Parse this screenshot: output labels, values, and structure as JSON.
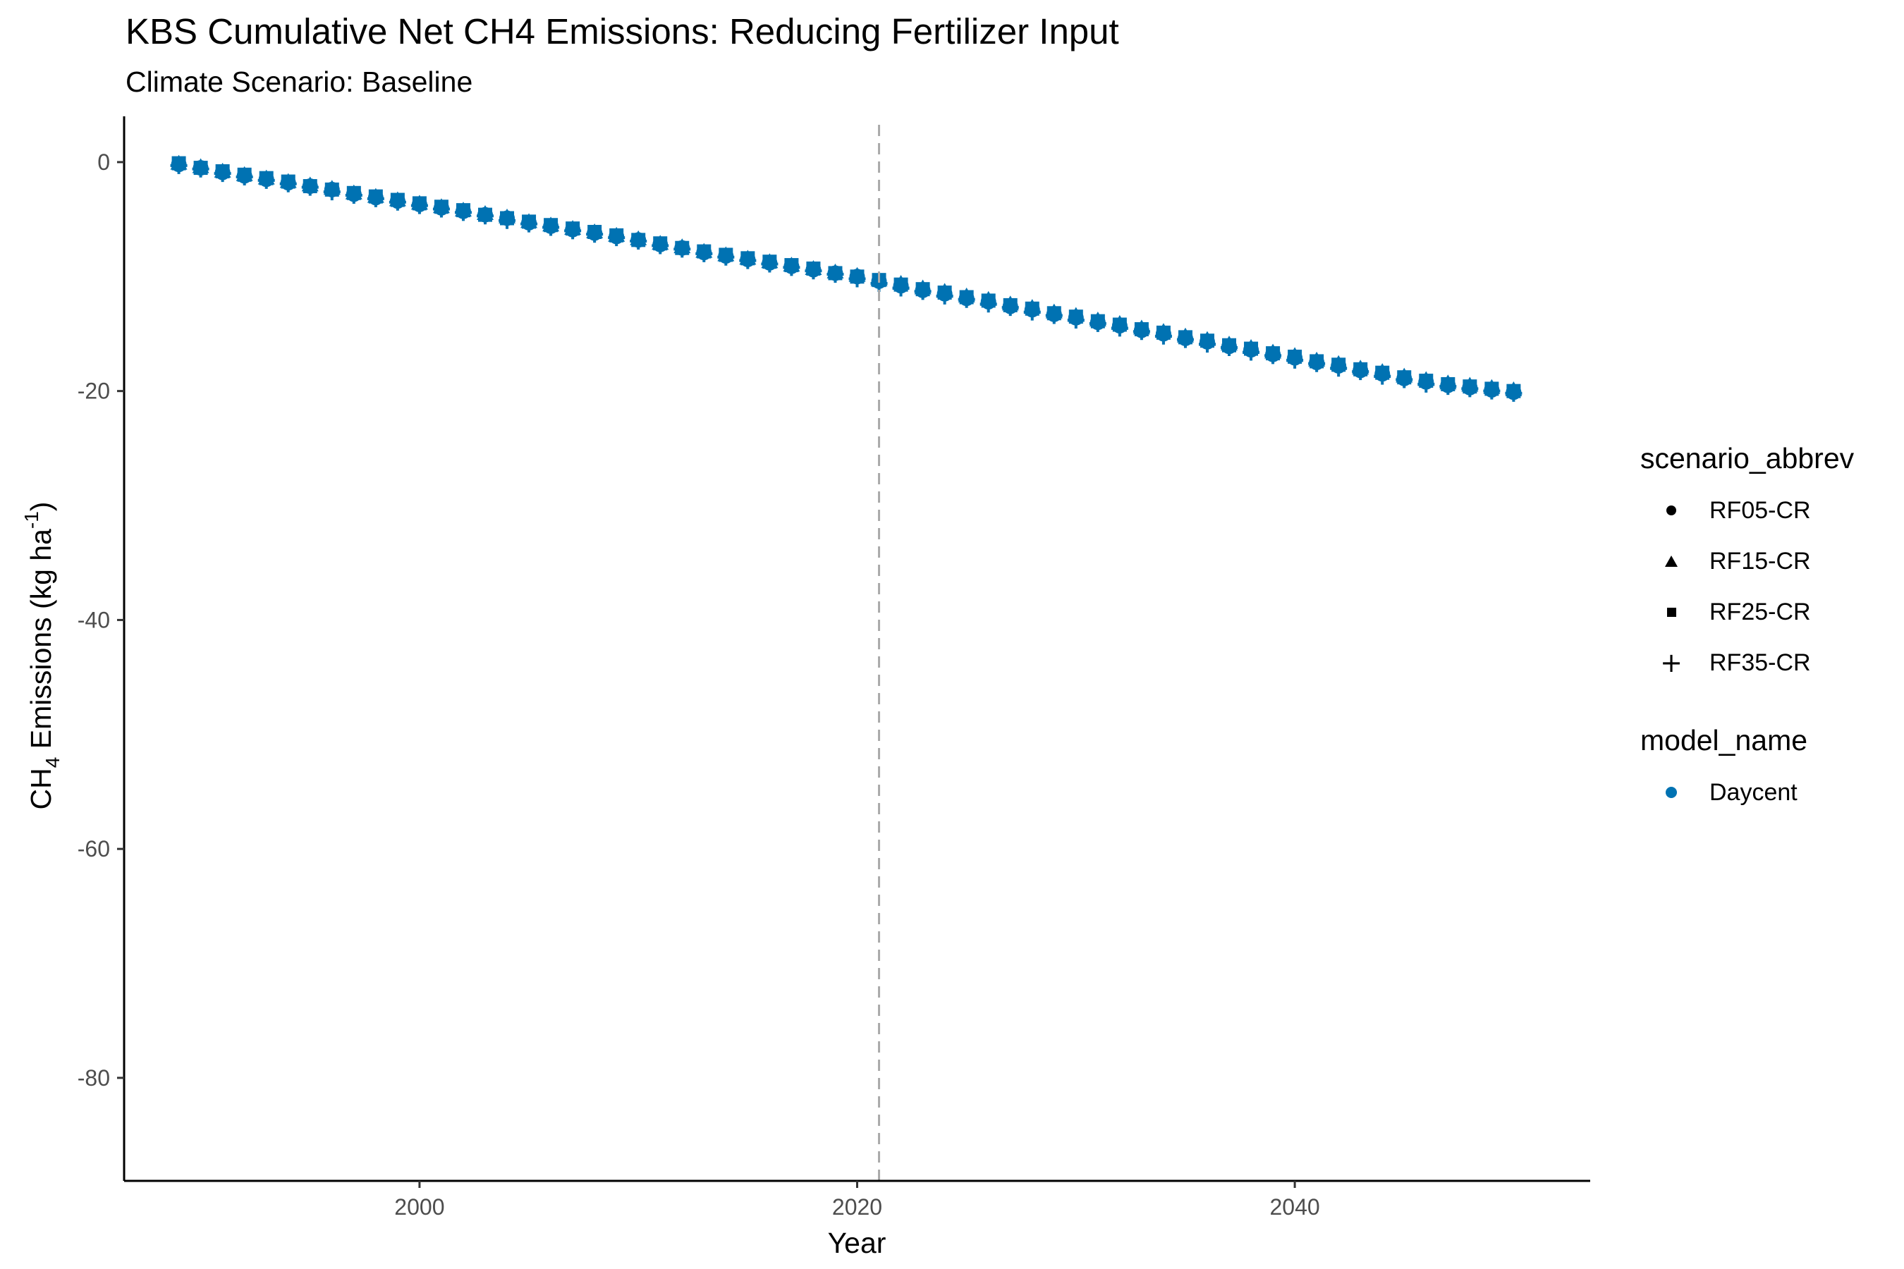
{
  "chart_data": {
    "type": "scatter",
    "title": "KBS  Cumulative Net CH4 Emissions: Reducing Fertilizer Input",
    "subtitle": "Climate Scenario: Baseline",
    "xlabel": "Year",
    "ylabel": "CH4 Emissions (kg ha -1)",
    "ylabel_parts": {
      "a": "CH",
      "sub": "4",
      "b": " Emissions (kg ha",
      "sup": "-1",
      "c": ")"
    },
    "xlim": [
      1986.5,
      2053.5
    ],
    "ylim": [
      -89,
      4
    ],
    "x_ticks": [
      2000,
      2020,
      2040
    ],
    "x_tick_labels": [
      "2000",
      "2020",
      "2040"
    ],
    "y_ticks": [
      0,
      -20,
      -40,
      -60,
      -80
    ],
    "y_tick_labels": [
      "0",
      "-20",
      "-40",
      "-60",
      "-80"
    ],
    "vline": {
      "x": 2021,
      "style": "dashed",
      "color": "#aaaaaa"
    },
    "grid": false,
    "legend_position": "right",
    "series_color": "#0072B2",
    "x": [
      1989,
      1990,
      1991,
      1992,
      1993,
      1994,
      1995,
      1996,
      1997,
      1998,
      1999,
      2000,
      2001,
      2002,
      2003,
      2004,
      2005,
      2006,
      2007,
      2008,
      2009,
      2010,
      2011,
      2012,
      2013,
      2014,
      2015,
      2016,
      2017,
      2018,
      2019,
      2020,
      2021,
      2022,
      2023,
      2024,
      2025,
      2026,
      2027,
      2028,
      2029,
      2030,
      2031,
      2032,
      2033,
      2034,
      2035,
      2036,
      2037,
      2038,
      2039,
      2040,
      2041,
      2042,
      2043,
      2044,
      2045,
      2046,
      2047,
      2048,
      2049,
      2050
    ],
    "series": [
      {
        "name": "RF05-CR",
        "shape": "circle",
        "model": "Daycent",
        "values": [
          -0.2,
          -0.5,
          -0.9,
          -1.2,
          -1.5,
          -1.8,
          -2.1,
          -2.4,
          -2.8,
          -3.1,
          -3.4,
          -3.7,
          -4.0,
          -4.3,
          -4.6,
          -4.9,
          -5.3,
          -5.6,
          -5.9,
          -6.2,
          -6.5,
          -6.8,
          -7.2,
          -7.5,
          -7.9,
          -8.2,
          -8.5,
          -8.8,
          -9.1,
          -9.4,
          -9.7,
          -10.0,
          -10.4,
          -10.8,
          -11.2,
          -11.5,
          -11.9,
          -12.2,
          -12.6,
          -12.9,
          -13.3,
          -13.6,
          -14.0,
          -14.3,
          -14.7,
          -15.0,
          -15.4,
          -15.7,
          -16.1,
          -16.4,
          -16.8,
          -17.1,
          -17.5,
          -17.8,
          -18.2,
          -18.5,
          -18.9,
          -19.2,
          -19.5,
          -19.7,
          -19.9,
          -20.1
        ]
      },
      {
        "name": "RF15-CR",
        "shape": "triangle",
        "model": "Daycent",
        "values": [
          -0.1,
          -0.4,
          -0.8,
          -1.1,
          -1.4,
          -1.7,
          -2.0,
          -2.3,
          -2.7,
          -3.0,
          -3.3,
          -3.6,
          -3.9,
          -4.2,
          -4.5,
          -4.8,
          -5.2,
          -5.5,
          -5.8,
          -6.1,
          -6.4,
          -6.7,
          -7.1,
          -7.4,
          -7.8,
          -8.1,
          -8.4,
          -8.7,
          -9.0,
          -9.3,
          -9.6,
          -9.9,
          -10.3,
          -10.6,
          -11.0,
          -11.3,
          -11.7,
          -12.0,
          -12.4,
          -12.7,
          -13.1,
          -13.4,
          -13.8,
          -14.1,
          -14.5,
          -14.8,
          -15.2,
          -15.5,
          -15.9,
          -16.2,
          -16.6,
          -16.9,
          -17.3,
          -17.6,
          -18.0,
          -18.3,
          -18.7,
          -19.0,
          -19.3,
          -19.5,
          -19.7,
          -19.9
        ]
      },
      {
        "name": "RF25-CR",
        "shape": "square",
        "model": "Daycent",
        "values": [
          -0.1,
          -0.5,
          -0.8,
          -1.1,
          -1.4,
          -1.7,
          -2.1,
          -2.4,
          -2.7,
          -3.0,
          -3.3,
          -3.6,
          -3.9,
          -4.2,
          -4.6,
          -4.9,
          -5.2,
          -5.5,
          -5.8,
          -6.1,
          -6.4,
          -6.8,
          -7.1,
          -7.5,
          -7.8,
          -8.1,
          -8.4,
          -8.7,
          -9.0,
          -9.3,
          -9.7,
          -10.0,
          -10.3,
          -10.7,
          -11.1,
          -11.4,
          -11.8,
          -12.1,
          -12.5,
          -12.8,
          -13.2,
          -13.5,
          -13.9,
          -14.2,
          -14.6,
          -14.9,
          -15.3,
          -15.6,
          -16.0,
          -16.3,
          -16.7,
          -17.0,
          -17.4,
          -17.7,
          -18.1,
          -18.4,
          -18.8,
          -19.1,
          -19.4,
          -19.6,
          -19.8,
          -20.0
        ]
      },
      {
        "name": "RF35-CR",
        "shape": "plus",
        "model": "Daycent",
        "values": [
          -0.3,
          -0.6,
          -1.0,
          -1.3,
          -1.6,
          -1.9,
          -2.2,
          -2.6,
          -2.9,
          -3.2,
          -3.5,
          -3.8,
          -4.1,
          -4.4,
          -4.7,
          -5.1,
          -5.4,
          -5.7,
          -6.0,
          -6.3,
          -6.6,
          -6.9,
          -7.3,
          -7.6,
          -8.0,
          -8.3,
          -8.6,
          -8.9,
          -9.2,
          -9.5,
          -9.8,
          -10.2,
          -10.6,
          -11.0,
          -11.3,
          -11.7,
          -12.0,
          -12.4,
          -12.7,
          -13.1,
          -13.4,
          -13.8,
          -14.1,
          -14.5,
          -14.8,
          -15.2,
          -15.5,
          -15.9,
          -16.2,
          -16.6,
          -16.9,
          -17.3,
          -17.6,
          -18.0,
          -18.3,
          -18.7,
          -19.0,
          -19.4,
          -19.6,
          -19.8,
          -20.0,
          -20.2
        ]
      }
    ]
  },
  "legend": {
    "shape_title": "scenario_abbrev",
    "shape_items": [
      {
        "label": "RF05-CR",
        "icon": "circle"
      },
      {
        "label": "RF15-CR",
        "icon": "triangle"
      },
      {
        "label": "RF25-CR",
        "icon": "square"
      },
      {
        "label": "RF35-CR",
        "icon": "plus"
      }
    ],
    "color_title": "model_name",
    "color_items": [
      {
        "label": "Daycent",
        "color": "#0072B2"
      }
    ]
  }
}
